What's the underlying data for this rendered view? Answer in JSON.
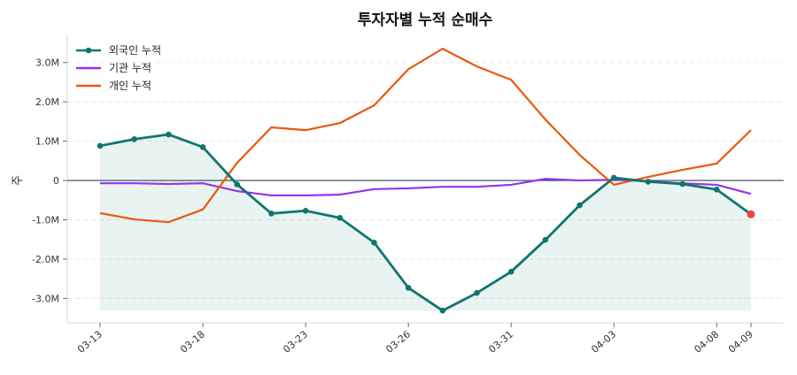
{
  "chart_data": {
    "type": "line",
    "title": "투자자별 누적 순매수",
    "xlabel": "",
    "ylabel": "주",
    "categories": [
      "03-13",
      "",
      "",
      "03-18",
      "",
      "",
      "03-23",
      "",
      "",
      "03-26",
      "",
      "",
      "03-31",
      "",
      "",
      "04-03",
      "",
      "",
      "04-08",
      "04-09"
    ],
    "yticks": [
      -3.0,
      -2.0,
      -1.0,
      0,
      1.0,
      2.0,
      3.0
    ],
    "ytick_labels": [
      "-3.0M",
      "-2.0M",
      "-1.0M",
      "0",
      "1.0M",
      "2.0M",
      "3.0M"
    ],
    "ylim": [
      -3.62,
      3.69
    ],
    "unit": "M",
    "grid": "horizontal dashed",
    "legend": "top-left",
    "series": [
      {
        "name": "외국인 누적",
        "color": "#0f766e",
        "markers": true,
        "fill": true,
        "values": [
          0.88,
          1.05,
          1.17,
          0.85,
          -0.1,
          -0.84,
          -0.77,
          -0.95,
          -1.58,
          -2.73,
          -3.31,
          -2.86,
          -2.32,
          -1.51,
          -0.63,
          0.07,
          -0.03,
          -0.09,
          -0.23,
          -0.86
        ]
      },
      {
        "name": "기관 누적",
        "color": "#9333ea",
        "markers": false,
        "values": [
          -0.07,
          -0.07,
          -0.09,
          -0.07,
          -0.27,
          -0.38,
          -0.38,
          -0.36,
          -0.22,
          -0.2,
          -0.16,
          -0.16,
          -0.11,
          0.04,
          0,
          0.02,
          -0.02,
          -0.07,
          -0.11,
          -0.34
        ]
      },
      {
        "name": "개인 누적",
        "color": "#ea580c",
        "markers": false,
        "values": [
          -0.83,
          -0.99,
          -1.06,
          -0.74,
          0.45,
          1.35,
          1.28,
          1.46,
          1.91,
          2.83,
          3.35,
          2.9,
          2.56,
          1.55,
          0.65,
          -0.11,
          0.09,
          0.27,
          0.43,
          1.28
        ]
      }
    ],
    "highlight_last_color": "#ef4444"
  }
}
